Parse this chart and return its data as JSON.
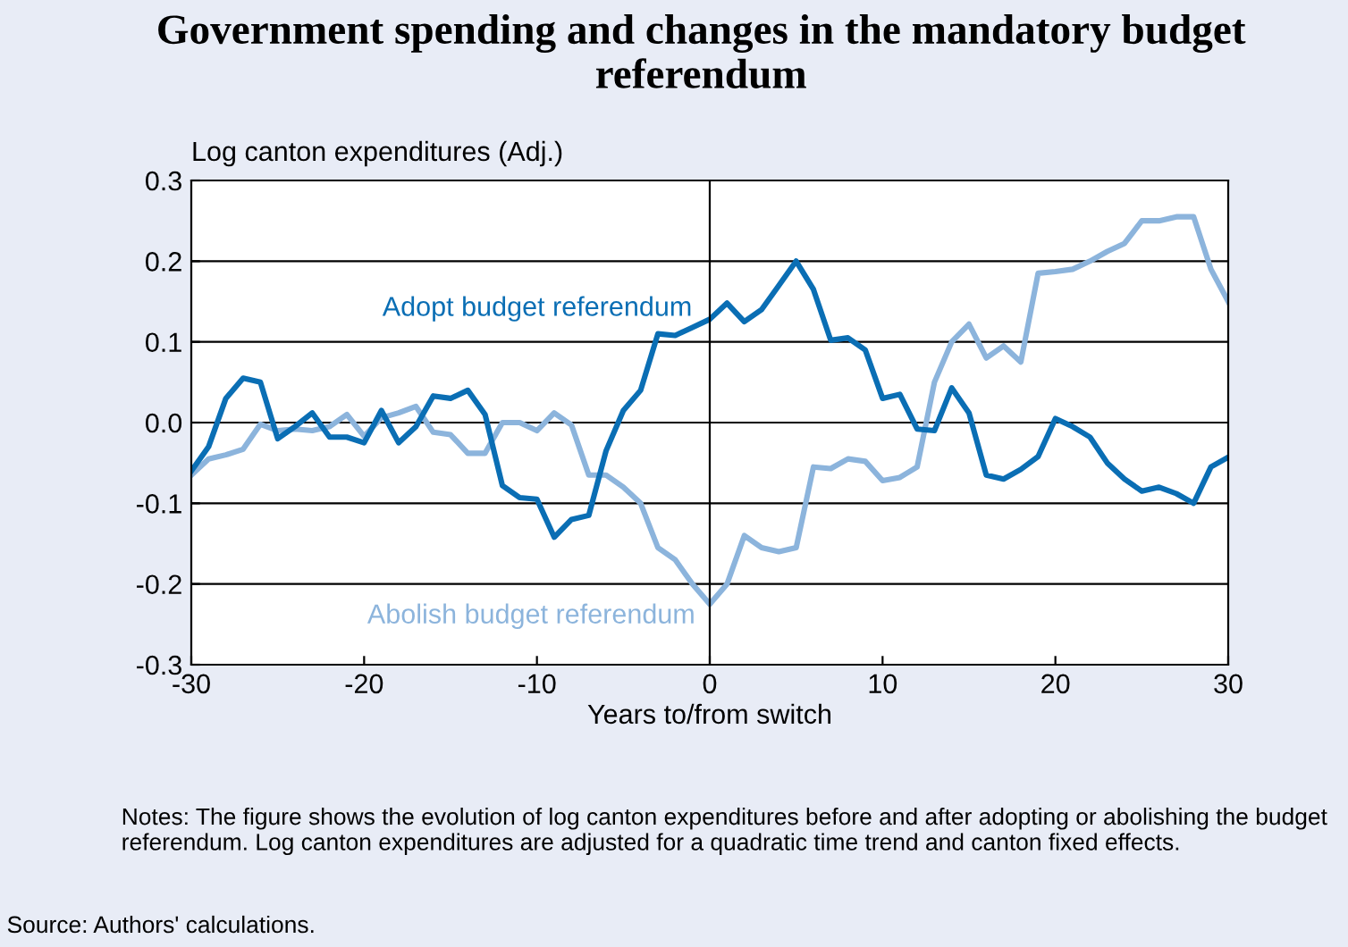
{
  "chart_data": {
    "type": "line",
    "title": "Government spending and changes in the mandatory budget referendum",
    "ylabel": "Log canton expenditures (Adj.)",
    "xlabel": "Years to/from switch",
    "x": [
      -30,
      -29,
      -28,
      -27,
      -26,
      -25,
      -24,
      -23,
      -22,
      -21,
      -20,
      -19,
      -18,
      -17,
      -16,
      -15,
      -14,
      -13,
      -12,
      -11,
      -10,
      -9,
      -8,
      -7,
      -6,
      -5,
      -4,
      -3,
      -2,
      -1,
      0,
      1,
      2,
      3,
      4,
      5,
      6,
      7,
      8,
      9,
      10,
      11,
      12,
      13,
      14,
      15,
      16,
      17,
      18,
      19,
      20,
      21,
      22,
      23,
      24,
      25,
      26,
      27,
      28,
      29,
      30
    ],
    "series": [
      {
        "name": "Abolish budget referendum",
        "color": "#8cb4dc",
        "values": [
          -0.065,
          -0.045,
          -0.04,
          -0.033,
          -0.002,
          -0.01,
          -0.008,
          -0.01,
          -0.005,
          0.01,
          -0.017,
          0.006,
          0.012,
          0.02,
          -0.012,
          -0.015,
          -0.038,
          -0.038,
          0.0,
          0.0,
          -0.01,
          0.012,
          -0.003,
          -0.065,
          -0.065,
          -0.08,
          -0.1,
          -0.155,
          -0.17,
          -0.2,
          -0.225,
          -0.2,
          -0.14,
          -0.155,
          -0.16,
          -0.155,
          -0.055,
          -0.057,
          -0.045,
          -0.048,
          -0.072,
          -0.068,
          -0.055,
          0.05,
          0.1,
          0.122,
          0.08,
          0.095,
          0.075,
          0.185,
          0.187,
          0.19,
          0.2,
          0.212,
          0.222,
          0.25,
          0.25,
          0.255,
          0.255,
          0.19,
          0.15
        ]
      },
      {
        "name": "Adopt budget referendum",
        "color": "#0a6eb4",
        "values": [
          -0.06,
          -0.03,
          0.03,
          0.055,
          0.05,
          -0.02,
          -0.005,
          0.012,
          -0.018,
          -0.018,
          -0.025,
          0.015,
          -0.025,
          -0.005,
          0.033,
          0.03,
          0.04,
          0.01,
          -0.078,
          -0.093,
          -0.095,
          -0.142,
          -0.12,
          -0.115,
          -0.035,
          0.015,
          0.04,
          0.11,
          0.108,
          0.118,
          0.128,
          0.148,
          0.125,
          0.14,
          0.17,
          0.2,
          0.165,
          0.102,
          0.105,
          0.09,
          0.03,
          0.035,
          -0.008,
          -0.01,
          0.043,
          0.012,
          -0.065,
          -0.07,
          -0.058,
          -0.042,
          0.005,
          -0.005,
          -0.018,
          -0.05,
          -0.07,
          -0.085,
          -0.08,
          -0.088,
          -0.1,
          -0.055,
          -0.043
        ]
      }
    ],
    "xlim": [
      -30,
      30
    ],
    "xticks": [
      -30,
      -20,
      -10,
      0,
      10,
      20,
      30
    ],
    "ylim": [
      -0.3,
      0.3
    ],
    "yticks": [
      {
        "value": -0.3,
        "label": "-0.3"
      },
      {
        "value": -0.2,
        "label": "-0.2"
      },
      {
        "value": -0.1,
        "label": "-0.1"
      },
      {
        "value": 0,
        "label": "0.0"
      },
      {
        "value": 0.1,
        "label": "0.1"
      },
      {
        "value": 0.2,
        "label": "0.2"
      },
      {
        "value": 0.3,
        "label": "0.3"
      }
    ],
    "grid": "y",
    "legend": false,
    "ref_lines": [
      {
        "axis": "x",
        "value": 0,
        "label": null,
        "color": "#000000"
      }
    ],
    "annotations": [
      "Notes: The figure shows the evolution of log canton expenditures before and after adopting or abolishing the budget referendum. Log canton expenditures are adjusted for a quadratic time trend and canton fixed effects.",
      "Source: Authors' calculations."
    ]
  }
}
